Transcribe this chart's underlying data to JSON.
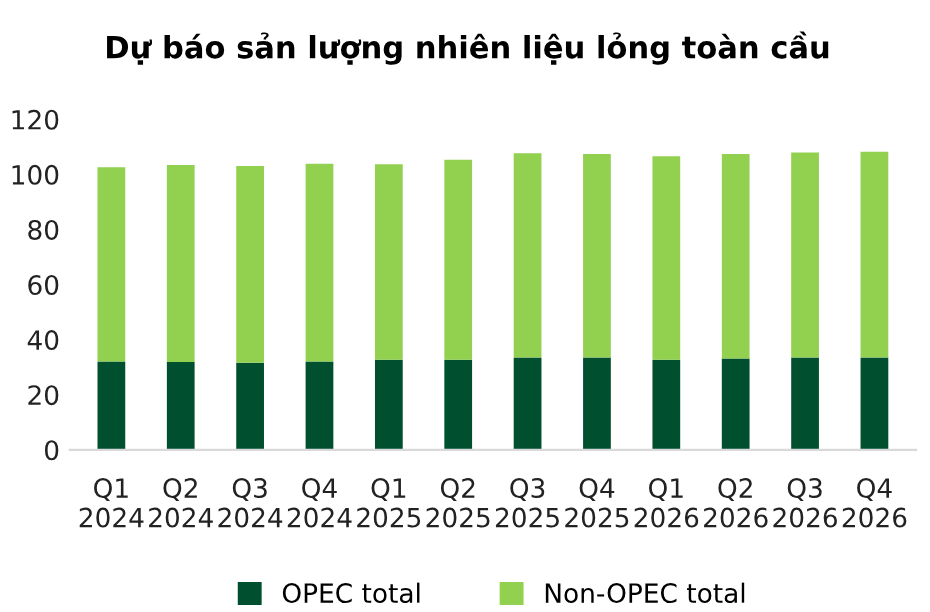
{
  "chart_data": {
    "type": "bar",
    "stacked": true,
    "title": "Dự báo sản lượng nhiên liệu lỏng toàn cầu",
    "categories": [
      "Q1\n2024",
      "Q2\n2024",
      "Q3\n2024",
      "Q4\n2024",
      "Q1\n2025",
      "Q2\n2025",
      "Q3\n2025",
      "Q4\n2025",
      "Q1\n2026",
      "Q2\n2026",
      "Q3\n2026",
      "Q4\n2026"
    ],
    "series": [
      {
        "name": "OPEC total",
        "color": "#005030",
        "values": [
          32.1,
          31.9,
          31.6,
          32.1,
          32.7,
          32.7,
          33.5,
          33.5,
          32.7,
          33.2,
          33.5,
          33.5
        ]
      },
      {
        "name": "Non-OPEC total",
        "color": "#92d050",
        "values": [
          70.5,
          71.5,
          71.5,
          71.8,
          71.0,
          72.6,
          74.2,
          73.9,
          73.9,
          74.2,
          74.5,
          74.7
        ]
      }
    ],
    "ylim": [
      0,
      120
    ],
    "yticks": [
      0,
      20,
      40,
      60,
      80,
      100,
      120
    ],
    "grid": false,
    "legend": "bottom"
  }
}
